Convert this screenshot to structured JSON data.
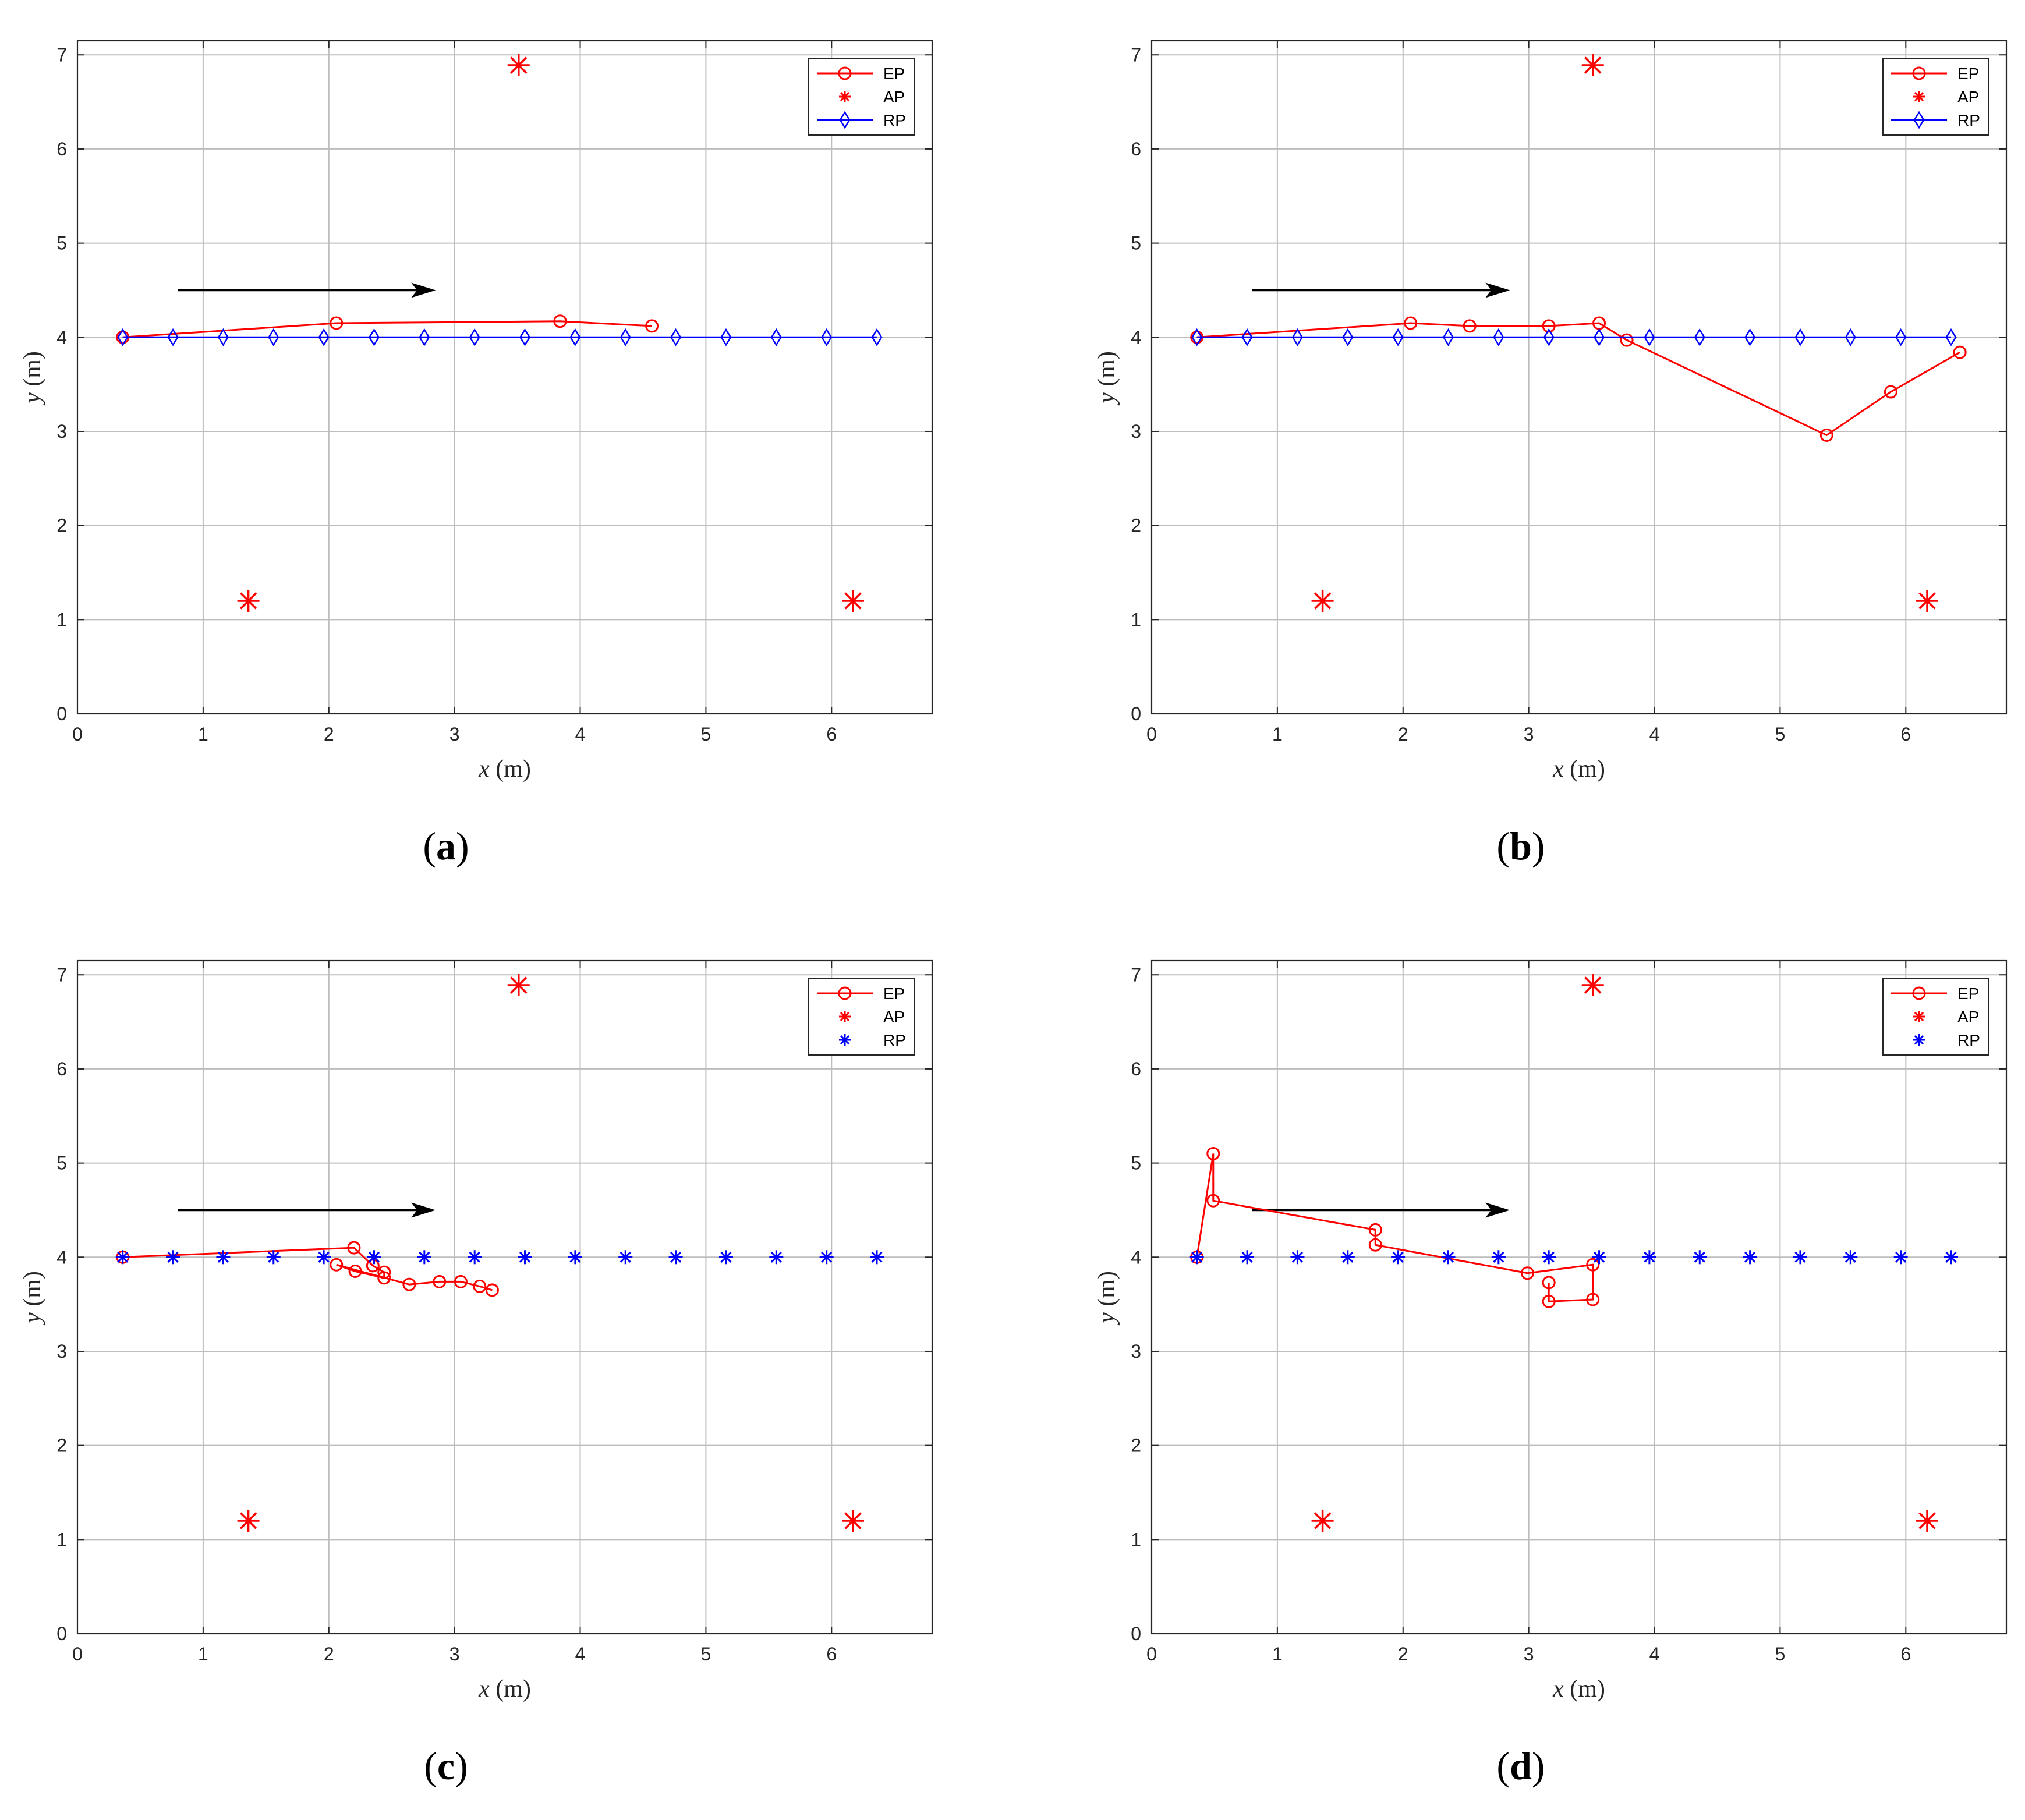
{
  "colors": {
    "ep": "#ff0000",
    "ap": "#ff0000",
    "rp": "#0000ff",
    "grid": "#bdbdbd",
    "axis": "#262626",
    "arrow": "#000000"
  },
  "chart_data": [
    {
      "type": "line",
      "caption_letter": "a",
      "xlabel_var": "x",
      "xlabel_unit": " (m)",
      "ylabel_var": "y",
      "ylabel_unit": " (m)",
      "xlim": [
        0,
        6.8
      ],
      "ylim": [
        0,
        7.15
      ],
      "xticks": [
        0,
        1,
        2,
        3,
        4,
        5,
        6
      ],
      "yticks": [
        0,
        1,
        2,
        3,
        4,
        5,
        6,
        7
      ],
      "grid": true,
      "legend_position": "top-right",
      "legend": [
        {
          "label": "EP",
          "style": "line-circle"
        },
        {
          "label": "AP",
          "style": "asterisk"
        },
        {
          "label": "RP",
          "style": "line-diamond"
        }
      ],
      "direction_arrow": {
        "from": [
          0.8,
          4.5
        ],
        "to": [
          2.85,
          4.5
        ]
      },
      "series": [
        {
          "name": "EP",
          "marker": "circle",
          "line": true,
          "x": [
            0.36,
            2.06,
            3.84,
            4.57
          ],
          "y": [
            4.0,
            4.15,
            4.17,
            4.12
          ]
        },
        {
          "name": "AP",
          "marker": "asterisk",
          "line": false,
          "x": [
            1.36,
            3.51,
            6.17
          ],
          "y": [
            1.2,
            6.89,
            1.2
          ]
        },
        {
          "name": "RP",
          "marker": "diamond",
          "line": true,
          "x": [
            0.36,
            0.76,
            1.16,
            1.56,
            1.96,
            2.36,
            2.76,
            3.16,
            3.56,
            3.96,
            4.36,
            4.76,
            5.16,
            5.56,
            5.96,
            6.36
          ],
          "y": [
            4,
            4,
            4,
            4,
            4,
            4,
            4,
            4,
            4,
            4,
            4,
            4,
            4,
            4,
            4,
            4
          ]
        }
      ]
    },
    {
      "type": "line",
      "caption_letter": "b",
      "xlabel_var": "x",
      "xlabel_unit": " (m)",
      "ylabel_var": "y",
      "ylabel_unit": " (m)",
      "xlim": [
        0,
        6.8
      ],
      "ylim": [
        0,
        7.15
      ],
      "xticks": [
        0,
        1,
        2,
        3,
        4,
        5,
        6
      ],
      "yticks": [
        0,
        1,
        2,
        3,
        4,
        5,
        6,
        7
      ],
      "grid": true,
      "legend_position": "top-right",
      "legend": [
        {
          "label": "EP",
          "style": "line-circle"
        },
        {
          "label": "AP",
          "style": "asterisk"
        },
        {
          "label": "RP",
          "style": "line-diamond"
        }
      ],
      "direction_arrow": {
        "from": [
          0.8,
          4.5
        ],
        "to": [
          2.85,
          4.5
        ]
      },
      "series": [
        {
          "name": "EP",
          "marker": "circle",
          "line": true,
          "x": [
            0.36,
            2.06,
            2.53,
            3.16,
            3.56,
            3.78,
            5.37,
            5.88,
            6.43
          ],
          "y": [
            4.0,
            4.15,
            4.12,
            4.12,
            4.15,
            3.97,
            2.96,
            3.42,
            3.84
          ]
        },
        {
          "name": "AP",
          "marker": "asterisk",
          "line": false,
          "x": [
            1.36,
            3.51,
            6.17
          ],
          "y": [
            1.2,
            6.89,
            1.2
          ]
        },
        {
          "name": "RP",
          "marker": "diamond",
          "line": true,
          "x": [
            0.36,
            0.76,
            1.16,
            1.56,
            1.96,
            2.36,
            2.76,
            3.16,
            3.56,
            3.96,
            4.36,
            4.76,
            5.16,
            5.56,
            5.96,
            6.36
          ],
          "y": [
            4,
            4,
            4,
            4,
            4,
            4,
            4,
            4,
            4,
            4,
            4,
            4,
            4,
            4,
            4,
            4
          ]
        }
      ]
    },
    {
      "type": "line",
      "caption_letter": "c",
      "xlabel_var": "x",
      "xlabel_unit": " (m)",
      "ylabel_var": "y",
      "ylabel_unit": " (m)",
      "xlim": [
        0,
        6.8
      ],
      "ylim": [
        0,
        7.15
      ],
      "xticks": [
        0,
        1,
        2,
        3,
        4,
        5,
        6
      ],
      "yticks": [
        0,
        1,
        2,
        3,
        4,
        5,
        6,
        7
      ],
      "grid": true,
      "legend_position": "top-right",
      "legend": [
        {
          "label": "EP",
          "style": "line-circle"
        },
        {
          "label": "AP",
          "style": "asterisk"
        },
        {
          "label": "RP",
          "style": "asterisk-blue"
        }
      ],
      "direction_arrow": {
        "from": [
          0.8,
          4.5
        ],
        "to": [
          2.85,
          4.5
        ]
      },
      "series": [
        {
          "name": "EP",
          "marker": "circle",
          "line": true,
          "x": [
            0.36,
            2.2,
            2.35,
            2.44,
            2.44,
            2.21,
            2.06,
            2.64,
            2.88,
            3.05,
            3.2,
            3.3
          ],
          "y": [
            4.0,
            4.1,
            3.91,
            3.84,
            3.78,
            3.85,
            3.92,
            3.71,
            3.74,
            3.74,
            3.69,
            3.65
          ]
        },
        {
          "name": "AP",
          "marker": "asterisk",
          "line": false,
          "x": [
            1.36,
            3.51,
            6.17
          ],
          "y": [
            1.2,
            6.89,
            1.2
          ]
        },
        {
          "name": "RP",
          "marker": "asterisk",
          "line": false,
          "x": [
            0.36,
            0.76,
            1.16,
            1.56,
            1.96,
            2.36,
            2.76,
            3.16,
            3.56,
            3.96,
            4.36,
            4.76,
            5.16,
            5.56,
            5.96,
            6.36
          ],
          "y": [
            4,
            4,
            4,
            4,
            4,
            4,
            4,
            4,
            4,
            4,
            4,
            4,
            4,
            4,
            4,
            4
          ]
        }
      ]
    },
    {
      "type": "line",
      "caption_letter": "d",
      "xlabel_var": "x",
      "xlabel_unit": " (m)",
      "ylabel_var": "y",
      "ylabel_unit": " (m)",
      "xlim": [
        0,
        6.8
      ],
      "ylim": [
        0,
        7.15
      ],
      "xticks": [
        0,
        1,
        2,
        3,
        4,
        5,
        6
      ],
      "yticks": [
        0,
        1,
        2,
        3,
        4,
        5,
        6,
        7
      ],
      "grid": true,
      "legend_position": "top-right",
      "legend": [
        {
          "label": "EP",
          "style": "line-circle"
        },
        {
          "label": "AP",
          "style": "asterisk"
        },
        {
          "label": "RP",
          "style": "asterisk-blue"
        }
      ],
      "direction_arrow": {
        "from": [
          0.8,
          4.5
        ],
        "to": [
          2.85,
          4.5
        ]
      },
      "series": [
        {
          "name": "EP",
          "marker": "circle",
          "line": true,
          "x": [
            0.36,
            0.49,
            0.49,
            1.78,
            1.78,
            2.99,
            3.51,
            3.51,
            3.16,
            3.16
          ],
          "y": [
            4.0,
            5.1,
            4.6,
            4.29,
            4.13,
            3.83,
            3.92,
            3.55,
            3.53,
            3.73
          ]
        },
        {
          "name": "AP",
          "marker": "asterisk",
          "line": false,
          "x": [
            1.36,
            3.51,
            6.17
          ],
          "y": [
            1.2,
            6.89,
            1.2
          ]
        },
        {
          "name": "RP",
          "marker": "asterisk",
          "line": false,
          "x": [
            0.36,
            0.76,
            1.16,
            1.56,
            1.96,
            2.36,
            2.76,
            3.16,
            3.56,
            3.96,
            4.36,
            4.76,
            5.16,
            5.56,
            5.96,
            6.36
          ],
          "y": [
            4,
            4,
            4,
            4,
            4,
            4,
            4,
            4,
            4,
            4,
            4,
            4,
            4,
            4,
            4,
            4
          ]
        }
      ]
    }
  ]
}
